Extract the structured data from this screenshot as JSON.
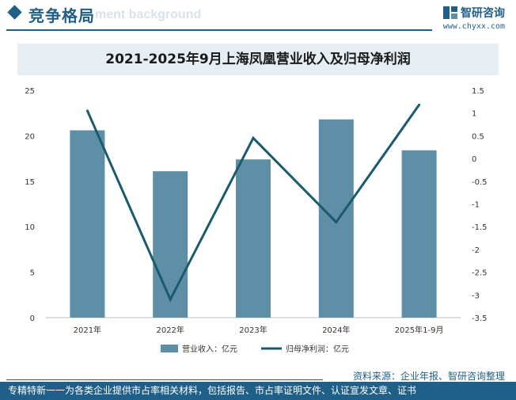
{
  "header": {
    "title": "竞争格局",
    "watermark": "ment background"
  },
  "logo": {
    "name": "智研咨询",
    "url": "www.chyxx.com"
  },
  "watermark_text": "智研咨询",
  "chart_data": {
    "type": "bar",
    "title": "2021-2025年9月上海凤凰营业收入及归母净利润",
    "categories": [
      "2021年",
      "2022年",
      "2023年",
      "2024年",
      "2025年1-9月"
    ],
    "series": [
      {
        "name": "营业收入：亿元",
        "type": "bar",
        "axis": "left",
        "color": "#5f8fa6",
        "values": [
          20.6,
          16.1,
          17.4,
          21.8,
          18.4
        ]
      },
      {
        "name": "归母净利润：亿元",
        "type": "line",
        "axis": "right",
        "color": "#1a5a6e",
        "values": [
          1.05,
          -3.1,
          0.45,
          -1.4,
          1.18
        ]
      }
    ],
    "y_left": {
      "min": 0,
      "max": 25,
      "step": 5,
      "ticks": [
        "0",
        "5",
        "10",
        "15",
        "20",
        "25"
      ]
    },
    "y_right": {
      "min": -3.5,
      "max": 1.5,
      "step": 0.5,
      "ticks": [
        "-3.5",
        "-3",
        "-2.5",
        "-2",
        "-1.5",
        "-1",
        "-0.5",
        "0",
        "0.5",
        "1",
        "1.5"
      ]
    },
    "legend_position": "bottom"
  },
  "footer": {
    "source": "资料来源：企业年报、智研咨询整理",
    "slogan": "专精特新一一为各类企业提供市占率相关材料，包括报告、市占率证明文件、认证宣发文章、证书"
  }
}
